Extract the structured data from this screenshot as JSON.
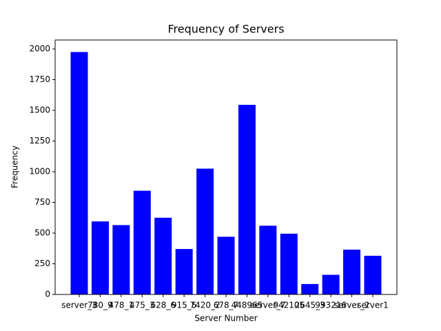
{
  "chart_data": {
    "type": "bar",
    "title": "Frequency of Servers",
    "x_label": "Server Number",
    "y_label": "Frequency",
    "categories": [
      "server_3",
      "780_9",
      "478_1",
      "475_3",
      "628_6",
      "915_5",
      "7420_2",
      "678_7",
      "448965",
      "server_7",
      "942105",
      "2645_3",
      "993216",
      "server_2",
      "server1"
    ],
    "values": [
      1975,
      595,
      565,
      845,
      625,
      370,
      1025,
      470,
      1545,
      560,
      495,
      85,
      160,
      365,
      315
    ],
    "color": "#0000ff",
    "ylim": [
      0,
      2073
    ],
    "yticks": [
      0,
      250,
      500,
      750,
      1000,
      1250,
      1500,
      1750,
      2000
    ],
    "grid": false
  }
}
